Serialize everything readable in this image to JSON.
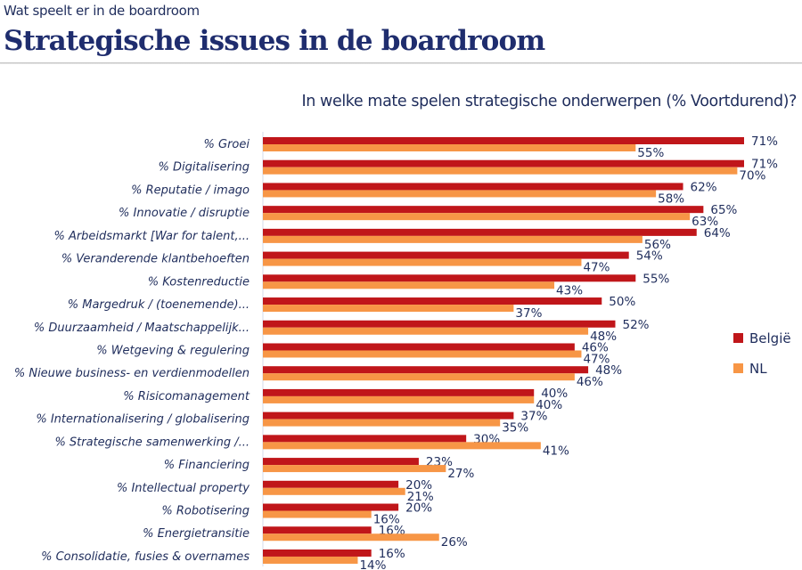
{
  "header": {
    "supertitle": "Wat speelt er in de boardroom",
    "title": "Strategische issues in de boardroom"
  },
  "chart_data": {
    "type": "bar",
    "orientation": "horizontal",
    "title": "In welke mate spelen strategische onderwerpen (% Voortdurend)?",
    "categories": [
      "% Groei",
      "% Digitalisering",
      "% Reputatie / imago",
      "% Innovatie / disruptie",
      "% Arbeidsmarkt [War for talent,...",
      "% Veranderende klantbehoeften",
      "% Kostenreductie",
      "%  Margedruk / (toenemende)...",
      "% Duurzaamheid / Maatschappelijk...",
      "% Wetgeving & regulering",
      "% Nieuwe business- en verdienmodellen",
      "% Risicomanagement",
      "% Internationalisering / globalisering",
      "% Strategische samenwerking /...",
      "% Financiering",
      "% Intellectual property",
      "% Robotisering",
      "% Energietransitie",
      "% Consolidatie, fusies & overnames"
    ],
    "series": [
      {
        "name": "België",
        "color": "#c0161a",
        "values": [
          71,
          71,
          62,
          65,
          64,
          54,
          55,
          50,
          52,
          46,
          48,
          40,
          37,
          30,
          23,
          20,
          20,
          16,
          16
        ]
      },
      {
        "name": "NL",
        "color": "#f79646",
        "values": [
          55,
          70,
          58,
          63,
          56,
          47,
          43,
          37,
          48,
          47,
          46,
          40,
          35,
          41,
          27,
          21,
          16,
          26,
          14
        ]
      }
    ],
    "value_suffix": "%",
    "legend": "right",
    "grid": false,
    "xlim": [
      0,
      71
    ]
  }
}
